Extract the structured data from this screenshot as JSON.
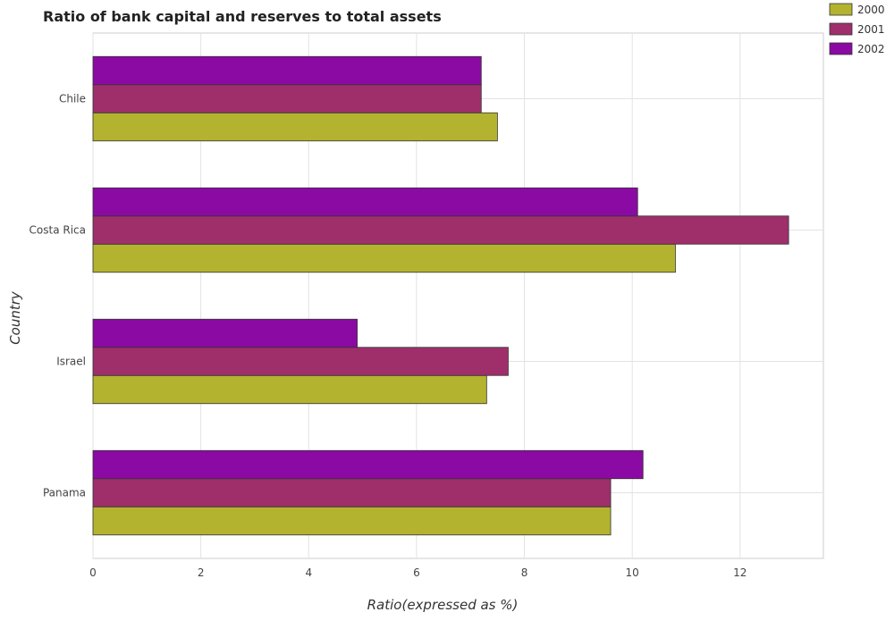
{
  "chart_data": {
    "type": "bar",
    "orientation": "horizontal",
    "title": "Ratio of bank capital and reserves to total assets",
    "xlabel": "Ratio(expressed as %)",
    "ylabel": "Country",
    "categories": [
      "Chile",
      "Costa Rica",
      "Israel",
      "Panama"
    ],
    "series": [
      {
        "name": "2000",
        "color": "#b3b330",
        "values": [
          7.5,
          10.8,
          7.3,
          9.6
        ]
      },
      {
        "name": "2001",
        "color": "#9e2f6b",
        "values": [
          7.2,
          12.9,
          7.7,
          9.6
        ]
      },
      {
        "name": "2002",
        "color": "#8b0aa3",
        "values": [
          7.2,
          10.1,
          4.9,
          10.2
        ]
      }
    ],
    "xlim": [
      0,
      13.545
    ],
    "xticks": [
      0,
      2,
      4,
      6,
      8,
      10,
      12
    ],
    "xtick_labels": [
      "0",
      "2",
      "4",
      "6",
      "8",
      "10",
      "12"
    ],
    "grid": true,
    "legend_position": "top-right"
  }
}
